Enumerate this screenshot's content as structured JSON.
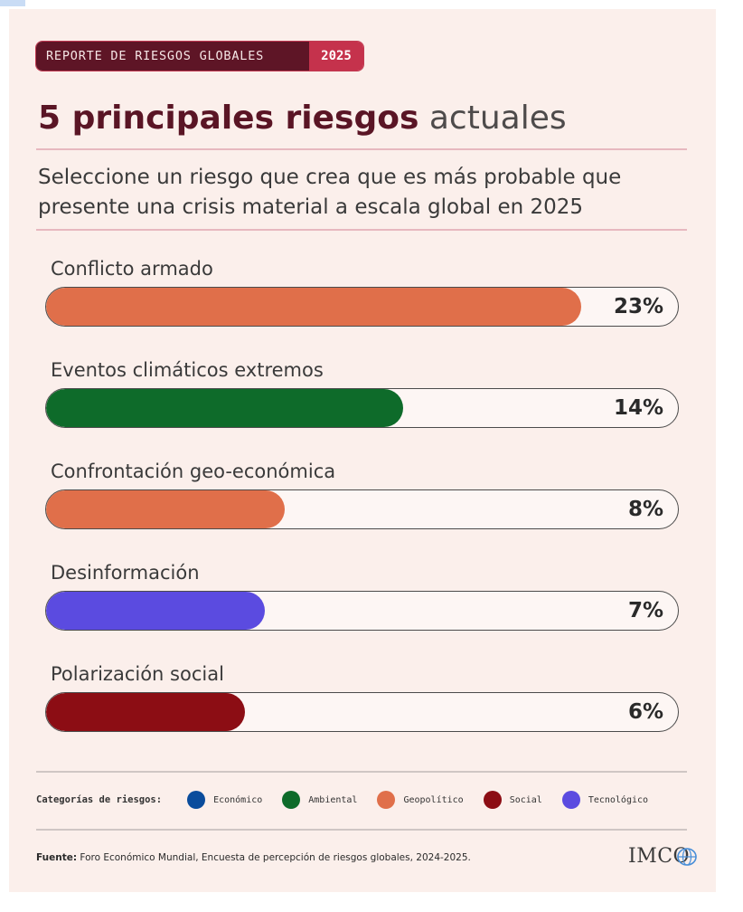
{
  "badge": {
    "label": "REPORTE DE RIESGOS GLOBALES",
    "year": "2025"
  },
  "title": {
    "bold": "5 principales riesgos",
    "light": "actuales"
  },
  "subtitle": "Seleccione un riesgo que crea que es más probable que presente una crisis material a escala global en 2025",
  "chart_data": {
    "type": "bar",
    "orientation": "horizontal",
    "title": "5 principales riesgos actuales",
    "unit": "%",
    "xlim": [
      0,
      100
    ],
    "categories": [
      "Conflicto armado",
      "Eventos climáticos extremos",
      "Confrontación geo-económica",
      "Desinformación",
      "Polarización social"
    ],
    "values": [
      23,
      14,
      8,
      7,
      6
    ],
    "value_labels": [
      "23%",
      "14%",
      "8%",
      "7%",
      "6%"
    ],
    "categories_type": [
      "Geopolítico",
      "Ambiental",
      "Geopolítico",
      "Tecnológico",
      "Social"
    ]
  },
  "legend": {
    "title": "Categorías de riesgos:",
    "items": [
      {
        "label": "Económico",
        "color": "#0a4c9c"
      },
      {
        "label": "Ambiental",
        "color": "#0e6b2a"
      },
      {
        "label": "Geopolítico",
        "color": "#e06f4a"
      },
      {
        "label": "Social",
        "color": "#8c0d14"
      },
      {
        "label": "Tecnológico",
        "color": "#5b4be0"
      }
    ]
  },
  "source": {
    "label": "Fuente:",
    "text": "Foro Económico Mundial, Encuesta de percepción de riesgos globales, 2024-2025."
  },
  "logo": {
    "text": "IMCO",
    "icon": "globe-icon"
  }
}
